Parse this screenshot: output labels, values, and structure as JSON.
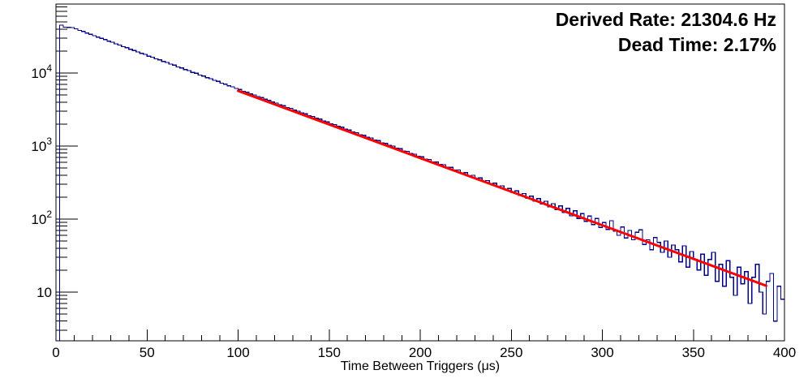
{
  "annotations": {
    "derived_rate": "Derived Rate: 21304.6 Hz",
    "dead_time": "Dead Time: 2.17%"
  },
  "colors": {
    "histogram": "#00008b",
    "fit": "#ff0000",
    "annotation": "#ff0000",
    "axis": "#000000",
    "background": "#ffffff"
  },
  "chart_data": {
    "type": "bar",
    "subtype": "step-histogram-with-exponential-fit",
    "title": "",
    "xlabel": "Time Between Triggers (μs)",
    "ylabel": "",
    "y_scale": "log",
    "x_range_us": [
      0,
      400
    ],
    "y_range": [
      2.15,
      88000
    ],
    "bin_width_us": 2,
    "grid": false,
    "legend": null,
    "x_major_ticks": [
      {
        "value": 0,
        "label": "0"
      },
      {
        "value": 50,
        "label": "50"
      },
      {
        "value": 100,
        "label": "100"
      },
      {
        "value": 150,
        "label": "150"
      },
      {
        "value": 200,
        "label": "200"
      },
      {
        "value": 250,
        "label": "250"
      },
      {
        "value": 300,
        "label": "300"
      },
      {
        "value": 350,
        "label": "350"
      },
      {
        "value": 400,
        "label": "400"
      }
    ],
    "x_minor_step_us": 10,
    "y_major_ticks": [
      {
        "value": 10,
        "mantissa": "10",
        "exponent": ""
      },
      {
        "value": 100,
        "mantissa": "10",
        "exponent": "2"
      },
      {
        "value": 1000,
        "mantissa": "10",
        "exponent": "3"
      },
      {
        "value": 10000,
        "mantissa": "10",
        "exponent": "4"
      }
    ],
    "counts": [
      1,
      45200,
      42400,
      42100,
      41950,
      40400,
      38350,
      37100,
      35300,
      34050,
      32480,
      31000,
      29980,
      28700,
      27300,
      26420,
      25100,
      24200,
      23000,
      22260,
      21150,
      20420,
      19480,
      18600,
      18010,
      17080,
      16520,
      15700,
      15180,
      14400,
      13940,
      13230,
      12800,
      12150,
      11760,
      11150,
      10800,
      10240,
      9920,
      9400,
      9110,
      8640,
      8370,
      7930,
      7690,
      7280,
      7060,
      6690,
      6480,
      6140,
      5950,
      5640,
      5470,
      5180,
      5020,
      4760,
      4610,
      4370,
      4230,
      4010,
      3890,
      3680,
      3570,
      3380,
      3280,
      3100,
      3010,
      2850,
      2765,
      2615,
      2540,
      2400,
      2335,
      2205,
      2145,
      2025,
      1970,
      1860,
      1810,
      1705,
      1660,
      1565,
      1525,
      1435,
      1405,
      1320,
      1290,
      1210,
      1185,
      1110,
      1090,
      1020,
      1000,
      935,
      920,
      858,
      845,
      788,
      775,
      722,
      715,
      662,
      655,
      608,
      603,
      557,
      555,
      510,
      512,
      468,
      470,
      430,
      432,
      393,
      398,
      360,
      366,
      330,
      337,
      302,
      310,
      277,
      286,
      254,
      263,
      232,
      243,
      212,
      224,
      194,
      206,
      177,
      191,
      162,
      176,
      148,
      163,
      134,
      151,
      123,
      140,
      111,
      130,
      102,
      119,
      93,
      110,
      84,
      102,
      77,
      90,
      72,
      95,
      68,
      60,
      78,
      55,
      70,
      52,
      66,
      71,
      45,
      52,
      38,
      56,
      48,
      35,
      50,
      30,
      44,
      38,
      26,
      43,
      22,
      36,
      28,
      20,
      33,
      17,
      28,
      35,
      14,
      24,
      12,
      27,
      16,
      9,
      22,
      13,
      19,
      7,
      16,
      24,
      10,
      5,
      14,
      18,
      4,
      12,
      8
    ],
    "fit": {
      "model": "exponential",
      "t_start_us": 100,
      "t_end_us": 390,
      "value_at_start": 5700,
      "value_at_end": 12.2,
      "derived_rate_hz": 21304.6,
      "dead_time_percent": 2.17
    }
  }
}
